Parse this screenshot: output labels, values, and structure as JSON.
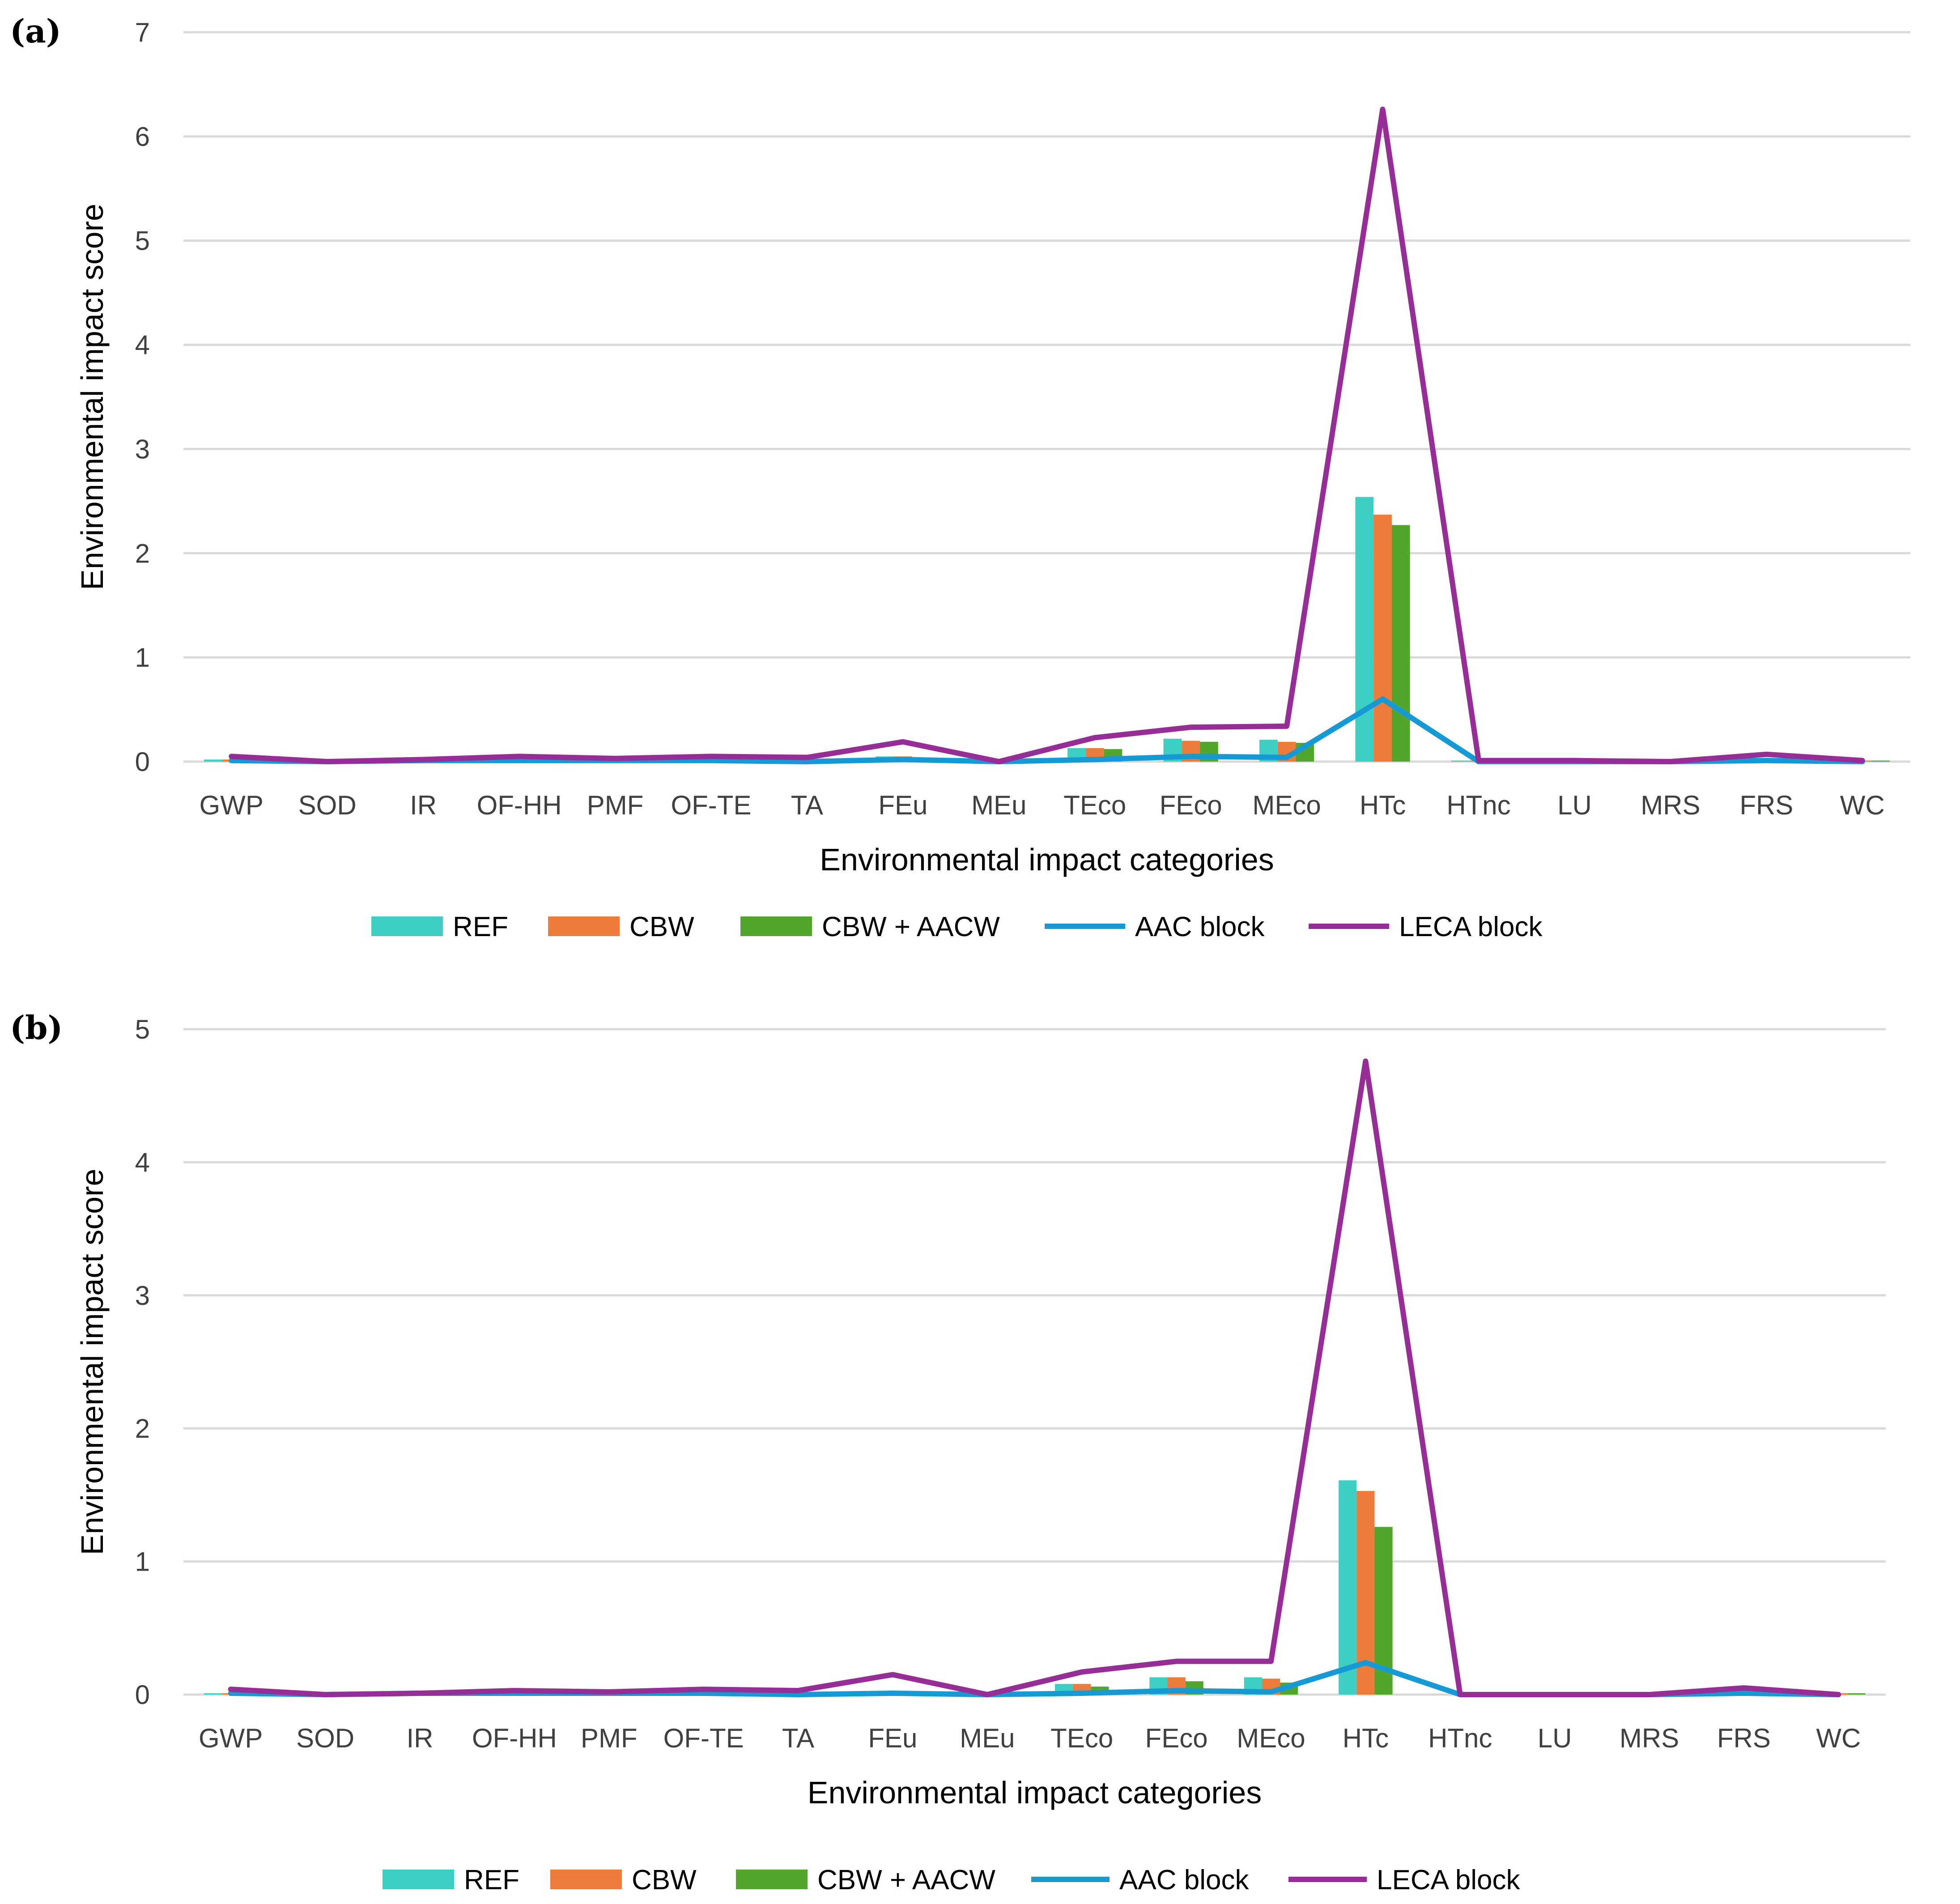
{
  "chart_data": [
    {
      "panel_label": "(a)",
      "type": "bar+line",
      "xlabel": "Environmental impact categories",
      "ylabel": "Environmental impact score",
      "ylim": [
        0,
        7
      ],
      "yticks": [
        "0",
        "1",
        "2",
        "3",
        "4",
        "5",
        "6",
        "7"
      ],
      "grid": true,
      "legend_position": "bottom",
      "categories": [
        "GWP",
        "SOD",
        "IR",
        "OF-HH",
        "PMF",
        "OF-TE",
        "TA",
        "FEu",
        "MEu",
        "TEco",
        "FEco",
        "MEco",
        "HTc",
        "HTnc",
        "LU",
        "MRS",
        "FRS",
        "WC"
      ],
      "series": [
        {
          "name": "REF",
          "kind": "bar",
          "color": "#3ecfc4",
          "values": [
            0.02,
            0,
            0.01,
            0.02,
            0.01,
            0.02,
            0.01,
            0.05,
            0,
            0.13,
            0.22,
            0.21,
            2.54,
            0.01,
            0,
            0,
            0.03,
            0.01
          ]
        },
        {
          "name": "CBW",
          "kind": "bar",
          "color": "#ed7b3a",
          "values": [
            0.02,
            0,
            0.01,
            0.02,
            0.01,
            0.02,
            0.01,
            0.05,
            0,
            0.13,
            0.2,
            0.19,
            2.37,
            0.01,
            0,
            0,
            0.03,
            0.01
          ]
        },
        {
          "name": "CBW + AACW",
          "kind": "bar",
          "color": "#52a62e",
          "values": [
            0.02,
            0,
            0.01,
            0.02,
            0.01,
            0.02,
            0.01,
            0.04,
            0,
            0.12,
            0.19,
            0.18,
            2.27,
            0.01,
            0,
            0,
            0.03,
            0.01
          ]
        },
        {
          "name": "AAC block",
          "kind": "line",
          "color": "#169ad6",
          "values": [
            0.01,
            0,
            0.01,
            0.01,
            0.01,
            0.01,
            0,
            0.02,
            0,
            0.02,
            0.05,
            0.04,
            0.6,
            0,
            0,
            0,
            0.01,
            0
          ]
        },
        {
          "name": "LECA block",
          "kind": "line",
          "color": "#972d97",
          "values": [
            0.05,
            0,
            0.02,
            0.05,
            0.03,
            0.05,
            0.04,
            0.19,
            0,
            0.23,
            0.33,
            0.34,
            6.26,
            0.01,
            0.01,
            0,
            0.07,
            0.01
          ]
        }
      ]
    },
    {
      "panel_label": "(b)",
      "type": "bar+line",
      "xlabel": "Environmental impact categories",
      "ylabel": "Environmental impact score",
      "ylim": [
        0,
        5
      ],
      "yticks": [
        "0",
        "1",
        "2",
        "3",
        "4",
        "5"
      ],
      "grid": true,
      "legend_position": "bottom",
      "categories": [
        "GWP",
        "SOD",
        "IR",
        "OF-HH",
        "PMF",
        "OF-TE",
        "TA",
        "FEu",
        "MEu",
        "TEco",
        "FEco",
        "MEco",
        "HTc",
        "HTnc",
        "LU",
        "MRS",
        "FRS",
        "WC"
      ],
      "series": [
        {
          "name": "REF",
          "kind": "bar",
          "color": "#3ecfc4",
          "values": [
            0.01,
            0,
            0.01,
            0.01,
            0.01,
            0.01,
            0.01,
            0.02,
            0,
            0.08,
            0.13,
            0.13,
            1.61,
            0,
            0,
            0,
            0.02,
            0.01
          ]
        },
        {
          "name": "CBW",
          "kind": "bar",
          "color": "#ed7b3a",
          "values": [
            0.01,
            0,
            0.01,
            0.01,
            0.01,
            0.01,
            0.01,
            0.02,
            0,
            0.08,
            0.13,
            0.12,
            1.53,
            0,
            0,
            0,
            0.02,
            0.01
          ]
        },
        {
          "name": "CBW + AACW",
          "kind": "bar",
          "color": "#52a62e",
          "values": [
            0.01,
            0,
            0.01,
            0.01,
            0.01,
            0.01,
            0.01,
            0.02,
            0,
            0.06,
            0.1,
            0.09,
            1.26,
            0,
            0,
            0,
            0.02,
            0.01
          ]
        },
        {
          "name": "AAC block",
          "kind": "line",
          "color": "#169ad6",
          "values": [
            0.01,
            0,
            0.01,
            0.01,
            0.01,
            0.01,
            0,
            0.01,
            0,
            0.01,
            0.03,
            0.02,
            0.24,
            0,
            0,
            0,
            0.01,
            0
          ]
        },
        {
          "name": "LECA block",
          "kind": "line",
          "color": "#972d97",
          "values": [
            0.04,
            0,
            0.01,
            0.03,
            0.02,
            0.04,
            0.03,
            0.15,
            0,
            0.17,
            0.25,
            0.25,
            4.76,
            0,
            0,
            0,
            0.05,
            0
          ]
        }
      ]
    }
  ]
}
